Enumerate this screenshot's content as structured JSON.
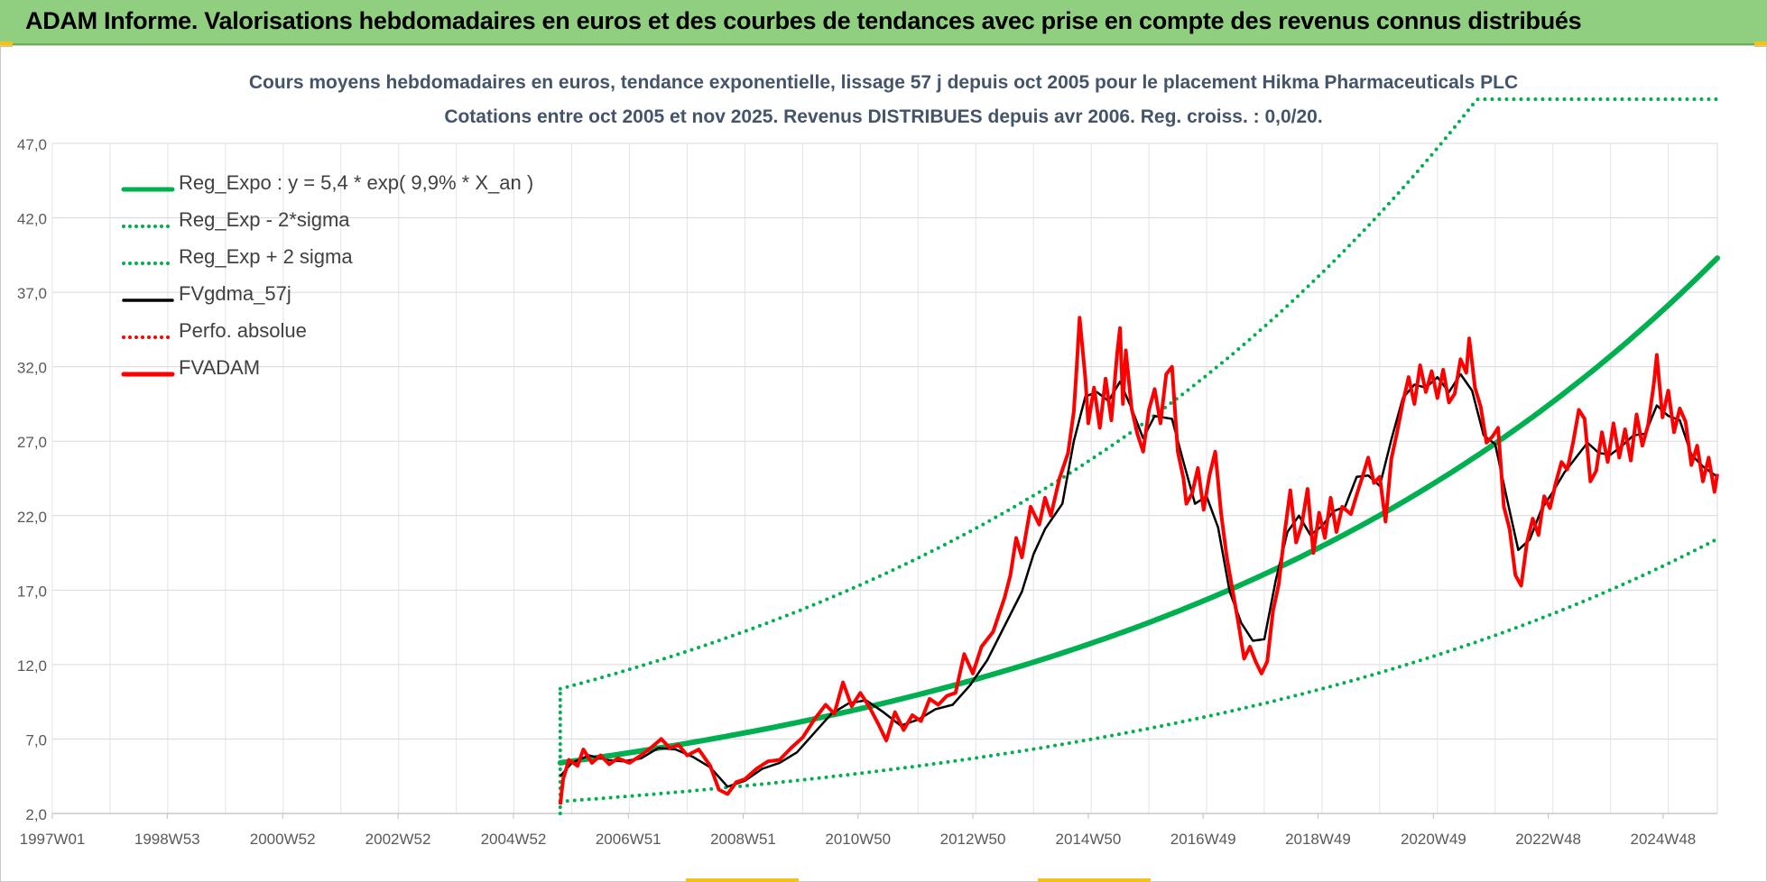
{
  "banner": {
    "title": "ADAM Informe. Valorisations hebdomadaires en euros et des courbes de tendances avec prise en compte des revenus connus distribués",
    "color": "#8fcf7f"
  },
  "chart_data": {
    "type": "line",
    "title": "Cours moyens hebdomadaires en euros, tendance exponentielle, lissage 57 j depuis oct 2005 pour le placement Hikma Pharmaceuticals PLC",
    "subtitle": "Cotations entre oct 2005 et nov 2025. Revenus DISTRIBUES depuis avr 2006. Reg. croiss. : 0,0/20.",
    "xlabel": "",
    "ylabel": "",
    "xlim": [
      1997.0,
      2025.85
    ],
    "ylim": [
      2.0,
      47.0
    ],
    "yticks": [
      "2,0",
      "7,0",
      "12,0",
      "17,0",
      "22,0",
      "27,0",
      "32,0",
      "37,0",
      "42,0",
      "47,0"
    ],
    "xticks": [
      {
        "label": "1997W01",
        "value": 1997.0
      },
      {
        "label": "1998W53",
        "value": 1998.99
      },
      {
        "label": "2000W52",
        "value": 2000.99
      },
      {
        "label": "2002W52",
        "value": 2002.99
      },
      {
        "label": "2004W52",
        "value": 2004.99
      },
      {
        "label": "2006W51",
        "value": 2006.98
      },
      {
        "label": "2008W51",
        "value": 2008.97
      },
      {
        "label": "2010W50",
        "value": 2010.96
      },
      {
        "label": "2012W50",
        "value": 2012.95
      },
      {
        "label": "2014W50",
        "value": 2014.95
      },
      {
        "label": "2016W49",
        "value": 2016.94
      },
      {
        "label": "2018W49",
        "value": 2018.93
      },
      {
        "label": "2020W49",
        "value": 2020.93
      },
      {
        "label": "2022W48",
        "value": 2022.92
      },
      {
        "label": "2024W48",
        "value": 2024.91
      }
    ],
    "grid": true,
    "legend_position": "top-left",
    "regression": {
      "a": 5.4,
      "rate": 0.099,
      "x0": 2005.8,
      "x_end": 2025.85,
      "upper_factor": 1.92,
      "lower_factor": 0.52
    },
    "series": [
      {
        "name": "Reg_Expo : y = 5,4 * exp( 9,9% *  X_an )",
        "color": "#00b050",
        "style": "solid-thick",
        "kind": "reg"
      },
      {
        "name": "Reg_Exp - 2*sigma",
        "color": "#00b050",
        "style": "dotted",
        "kind": "reg_low"
      },
      {
        "name": "Reg_Exp + 2 sigma",
        "color": "#00b050",
        "style": "dotted",
        "kind": "reg_high"
      },
      {
        "name": "FVgdma_57j",
        "color": "#000000",
        "style": "solid",
        "kind": "data",
        "points": [
          [
            2005.8,
            4.5
          ],
          [
            2006.0,
            5.4
          ],
          [
            2006.3,
            5.9
          ],
          [
            2006.6,
            5.6
          ],
          [
            2006.9,
            5.5
          ],
          [
            2007.2,
            5.7
          ],
          [
            2007.5,
            6.4
          ],
          [
            2007.8,
            6.3
          ],
          [
            2008.1,
            5.8
          ],
          [
            2008.4,
            5.1
          ],
          [
            2008.7,
            3.8
          ],
          [
            2009.0,
            4.2
          ],
          [
            2009.3,
            5.0
          ],
          [
            2009.6,
            5.4
          ],
          [
            2009.9,
            6.1
          ],
          [
            2010.2,
            7.4
          ],
          [
            2010.5,
            8.7
          ],
          [
            2010.8,
            9.4
          ],
          [
            2011.1,
            9.6
          ],
          [
            2011.4,
            8.8
          ],
          [
            2011.7,
            7.9
          ],
          [
            2012.0,
            8.3
          ],
          [
            2012.3,
            9.0
          ],
          [
            2012.6,
            9.3
          ],
          [
            2012.9,
            10.6
          ],
          [
            2013.2,
            12.3
          ],
          [
            2013.5,
            14.6
          ],
          [
            2013.8,
            16.9
          ],
          [
            2014.0,
            19.4
          ],
          [
            2014.2,
            21.1
          ],
          [
            2014.5,
            22.8
          ],
          [
            2014.7,
            27.0
          ],
          [
            2014.9,
            30.0
          ],
          [
            2015.1,
            30.3
          ],
          [
            2015.3,
            29.7
          ],
          [
            2015.5,
            31.0
          ],
          [
            2015.7,
            29.2
          ],
          [
            2015.9,
            27.2
          ],
          [
            2016.1,
            28.7
          ],
          [
            2016.4,
            28.5
          ],
          [
            2016.6,
            25.6
          ],
          [
            2016.8,
            22.8
          ],
          [
            2017.0,
            23.3
          ],
          [
            2017.2,
            21.2
          ],
          [
            2017.4,
            16.9
          ],
          [
            2017.6,
            14.8
          ],
          [
            2017.8,
            13.6
          ],
          [
            2018.0,
            13.7
          ],
          [
            2018.2,
            17.7
          ],
          [
            2018.4,
            20.9
          ],
          [
            2018.6,
            22.0
          ],
          [
            2018.8,
            20.7
          ],
          [
            2019.0,
            21.3
          ],
          [
            2019.2,
            22.3
          ],
          [
            2019.4,
            22.6
          ],
          [
            2019.6,
            24.6
          ],
          [
            2019.8,
            24.7
          ],
          [
            2020.0,
            24.0
          ],
          [
            2020.2,
            27.1
          ],
          [
            2020.4,
            29.9
          ],
          [
            2020.6,
            30.8
          ],
          [
            2020.8,
            30.6
          ],
          [
            2021.0,
            31.3
          ],
          [
            2021.2,
            30.3
          ],
          [
            2021.4,
            31.5
          ],
          [
            2021.6,
            30.4
          ],
          [
            2021.8,
            27.4
          ],
          [
            2022.0,
            26.8
          ],
          [
            2022.2,
            23.2
          ],
          [
            2022.4,
            19.7
          ],
          [
            2022.6,
            20.4
          ],
          [
            2022.8,
            22.4
          ],
          [
            2023.0,
            23.6
          ],
          [
            2023.2,
            24.9
          ],
          [
            2023.4,
            25.9
          ],
          [
            2023.6,
            26.9
          ],
          [
            2023.8,
            26.2
          ],
          [
            2024.0,
            26.1
          ],
          [
            2024.2,
            26.7
          ],
          [
            2024.4,
            27.4
          ],
          [
            2024.6,
            27.5
          ],
          [
            2024.8,
            29.4
          ],
          [
            2025.0,
            28.7
          ],
          [
            2025.2,
            28.4
          ],
          [
            2025.4,
            26.1
          ],
          [
            2025.6,
            25.3
          ],
          [
            2025.85,
            24.6
          ]
        ]
      },
      {
        "name": "Perfo. absolue",
        "color": "#ff0000",
        "style": "dotted",
        "kind": "legend-only"
      },
      {
        "name": "FVADAM",
        "color": "#ff0000",
        "style": "solid-thick",
        "kind": "data",
        "points": [
          [
            2005.8,
            2.6
          ],
          [
            2005.85,
            4.3
          ],
          [
            2005.95,
            5.6
          ],
          [
            2006.1,
            5.2
          ],
          [
            2006.2,
            6.3
          ],
          [
            2006.35,
            5.4
          ],
          [
            2006.5,
            5.9
          ],
          [
            2006.65,
            5.3
          ],
          [
            2006.8,
            5.7
          ],
          [
            2007.0,
            5.4
          ],
          [
            2007.2,
            5.9
          ],
          [
            2007.4,
            6.5
          ],
          [
            2007.55,
            7.0
          ],
          [
            2007.7,
            6.4
          ],
          [
            2007.85,
            6.6
          ],
          [
            2008.0,
            5.9
          ],
          [
            2008.2,
            6.3
          ],
          [
            2008.4,
            5.2
          ],
          [
            2008.55,
            3.6
          ],
          [
            2008.7,
            3.3
          ],
          [
            2008.85,
            4.1
          ],
          [
            2009.0,
            4.3
          ],
          [
            2009.2,
            5.0
          ],
          [
            2009.4,
            5.5
          ],
          [
            2009.6,
            5.6
          ],
          [
            2009.8,
            6.4
          ],
          [
            2010.0,
            7.1
          ],
          [
            2010.2,
            8.3
          ],
          [
            2010.4,
            9.3
          ],
          [
            2010.55,
            8.7
          ],
          [
            2010.7,
            10.8
          ],
          [
            2010.85,
            9.2
          ],
          [
            2011.0,
            10.1
          ],
          [
            2011.15,
            9.2
          ],
          [
            2011.3,
            8.1
          ],
          [
            2011.45,
            6.9
          ],
          [
            2011.6,
            8.8
          ],
          [
            2011.75,
            7.6
          ],
          [
            2011.9,
            8.6
          ],
          [
            2012.05,
            8.2
          ],
          [
            2012.2,
            9.7
          ],
          [
            2012.35,
            9.3
          ],
          [
            2012.5,
            9.9
          ],
          [
            2012.65,
            10.1
          ],
          [
            2012.8,
            12.7
          ],
          [
            2012.95,
            11.4
          ],
          [
            2013.1,
            13.2
          ],
          [
            2013.3,
            14.2
          ],
          [
            2013.5,
            16.5
          ],
          [
            2013.6,
            18.0
          ],
          [
            2013.7,
            20.5
          ],
          [
            2013.8,
            19.2
          ],
          [
            2013.95,
            22.6
          ],
          [
            2014.1,
            21.4
          ],
          [
            2014.2,
            23.2
          ],
          [
            2014.3,
            22.0
          ],
          [
            2014.45,
            24.5
          ],
          [
            2014.6,
            26.2
          ],
          [
            2014.7,
            29.0
          ],
          [
            2014.75,
            32.0
          ],
          [
            2014.8,
            35.3
          ],
          [
            2014.9,
            31.2
          ],
          [
            2014.95,
            28.2
          ],
          [
            2015.05,
            30.6
          ],
          [
            2015.15,
            27.9
          ],
          [
            2015.25,
            31.2
          ],
          [
            2015.35,
            28.4
          ],
          [
            2015.45,
            32.9
          ],
          [
            2015.5,
            34.6
          ],
          [
            2015.55,
            29.5
          ],
          [
            2015.6,
            33.1
          ],
          [
            2015.7,
            29.2
          ],
          [
            2015.8,
            27.5
          ],
          [
            2015.9,
            26.3
          ],
          [
            2016.0,
            29.1
          ],
          [
            2016.1,
            30.5
          ],
          [
            2016.2,
            28.2
          ],
          [
            2016.3,
            31.5
          ],
          [
            2016.4,
            32.0
          ],
          [
            2016.5,
            26.3
          ],
          [
            2016.6,
            24.5
          ],
          [
            2016.65,
            22.8
          ],
          [
            2016.75,
            23.5
          ],
          [
            2016.85,
            25.2
          ],
          [
            2016.95,
            22.4
          ],
          [
            2017.05,
            24.7
          ],
          [
            2017.15,
            26.3
          ],
          [
            2017.25,
            22.2
          ],
          [
            2017.35,
            19.2
          ],
          [
            2017.45,
            17.0
          ],
          [
            2017.55,
            14.8
          ],
          [
            2017.65,
            12.4
          ],
          [
            2017.75,
            13.2
          ],
          [
            2017.85,
            12.2
          ],
          [
            2017.95,
            11.4
          ],
          [
            2018.05,
            12.2
          ],
          [
            2018.15,
            15.6
          ],
          [
            2018.25,
            17.4
          ],
          [
            2018.35,
            20.8
          ],
          [
            2018.45,
            23.7
          ],
          [
            2018.55,
            20.2
          ],
          [
            2018.65,
            21.4
          ],
          [
            2018.75,
            23.8
          ],
          [
            2018.85,
            19.5
          ],
          [
            2018.95,
            22.2
          ],
          [
            2019.05,
            20.5
          ],
          [
            2019.15,
            23.2
          ],
          [
            2019.25,
            20.9
          ],
          [
            2019.35,
            22.6
          ],
          [
            2019.5,
            22.1
          ],
          [
            2019.6,
            23.4
          ],
          [
            2019.7,
            24.6
          ],
          [
            2019.8,
            25.9
          ],
          [
            2019.9,
            24.2
          ],
          [
            2020.0,
            24.6
          ],
          [
            2020.1,
            21.6
          ],
          [
            2020.2,
            25.8
          ],
          [
            2020.3,
            27.6
          ],
          [
            2020.4,
            29.6
          ],
          [
            2020.5,
            31.3
          ],
          [
            2020.6,
            29.5
          ],
          [
            2020.7,
            32.1
          ],
          [
            2020.8,
            30.3
          ],
          [
            2020.9,
            31.7
          ],
          [
            2021.0,
            29.9
          ],
          [
            2021.1,
            31.8
          ],
          [
            2021.2,
            29.6
          ],
          [
            2021.3,
            30.2
          ],
          [
            2021.4,
            32.5
          ],
          [
            2021.5,
            31.6
          ],
          [
            2021.55,
            33.9
          ],
          [
            2021.65,
            30.6
          ],
          [
            2021.75,
            29.3
          ],
          [
            2021.85,
            26.9
          ],
          [
            2021.95,
            27.3
          ],
          [
            2022.05,
            27.9
          ],
          [
            2022.15,
            22.6
          ],
          [
            2022.25,
            21.1
          ],
          [
            2022.35,
            18.0
          ],
          [
            2022.45,
            17.3
          ],
          [
            2022.55,
            20.2
          ],
          [
            2022.65,
            21.8
          ],
          [
            2022.75,
            20.7
          ],
          [
            2022.85,
            23.3
          ],
          [
            2022.95,
            22.5
          ],
          [
            2023.05,
            24.2
          ],
          [
            2023.15,
            25.6
          ],
          [
            2023.25,
            25.1
          ],
          [
            2023.35,
            26.9
          ],
          [
            2023.45,
            29.1
          ],
          [
            2023.55,
            28.5
          ],
          [
            2023.65,
            24.3
          ],
          [
            2023.75,
            25.0
          ],
          [
            2023.85,
            27.6
          ],
          [
            2023.95,
            25.6
          ],
          [
            2024.05,
            28.2
          ],
          [
            2024.15,
            25.9
          ],
          [
            2024.25,
            27.8
          ],
          [
            2024.35,
            25.7
          ],
          [
            2024.45,
            28.8
          ],
          [
            2024.55,
            26.7
          ],
          [
            2024.65,
            28.1
          ],
          [
            2024.75,
            30.9
          ],
          [
            2024.8,
            32.8
          ],
          [
            2024.9,
            28.6
          ],
          [
            2025.0,
            30.4
          ],
          [
            2025.1,
            27.6
          ],
          [
            2025.2,
            29.2
          ],
          [
            2025.3,
            28.3
          ],
          [
            2025.4,
            25.4
          ],
          [
            2025.5,
            26.7
          ],
          [
            2025.6,
            24.3
          ],
          [
            2025.7,
            25.9
          ],
          [
            2025.8,
            23.6
          ],
          [
            2025.85,
            24.8
          ]
        ]
      }
    ]
  }
}
